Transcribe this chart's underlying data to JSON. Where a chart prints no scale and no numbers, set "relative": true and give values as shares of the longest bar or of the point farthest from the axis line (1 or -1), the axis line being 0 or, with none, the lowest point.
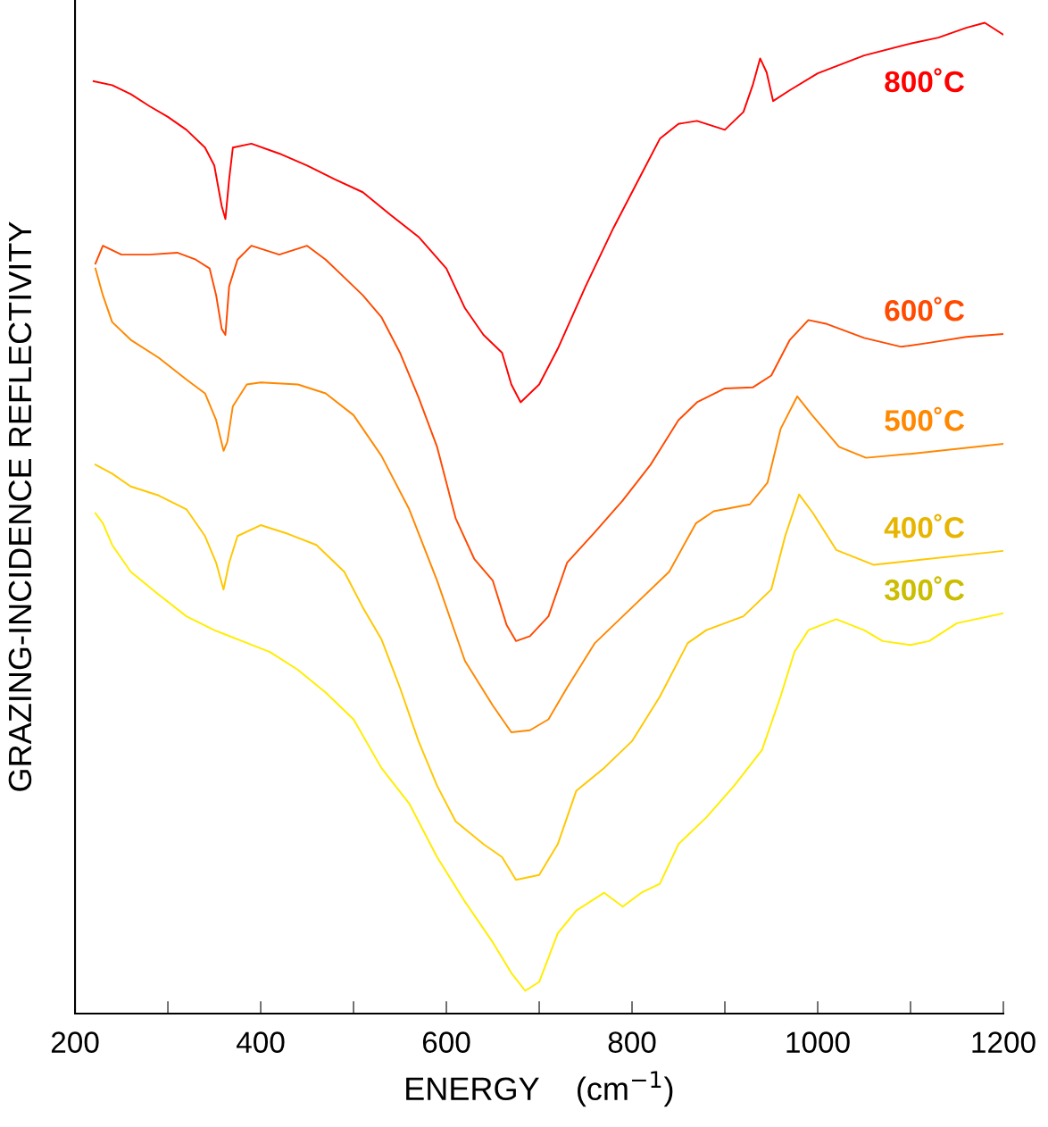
{
  "chart_data": {
    "type": "line",
    "relative": true,
    "xlabel": "ENERGY    (cm$^{−1}$)",
    "ylabel": "GRAZING-INCIDENCE REFLECTIVITY",
    "xlim": [
      200,
      1200
    ],
    "xticks": [
      200,
      {
        "value": 300,
        "label": null
      },
      400,
      {
        "value": 500,
        "label": null
      },
      600,
      {
        "value": 700,
        "label": null
      },
      800,
      {
        "value": 900,
        "label": null
      },
      1000,
      {
        "value": 1100,
        "label": null
      },
      1200
    ],
    "tick_labels": "x",
    "grid": false,
    "legend": false,
    "marker": "none",
    "line_style": "solid",
    "series": [
      {
        "name": "800˚C",
        "color": "#ff0000",
        "x": [
          220,
          240,
          260,
          280,
          300,
          320,
          340,
          350,
          358,
          362,
          366,
          370,
          390,
          420,
          450,
          480,
          510,
          540,
          570,
          600,
          620,
          640,
          660,
          670,
          680,
          700,
          720,
          750,
          780,
          810,
          830,
          850,
          870,
          900,
          920,
          930,
          938,
          945,
          952,
          970,
          1000,
          1050,
          1100,
          1130,
          1160,
          1180,
          1200
        ],
        "values": [
          0.941,
          0.937,
          0.928,
          0.916,
          0.905,
          0.892,
          0.874,
          0.856,
          0.815,
          0.802,
          0.842,
          0.874,
          0.878,
          0.868,
          0.856,
          0.842,
          0.829,
          0.806,
          0.784,
          0.752,
          0.712,
          0.685,
          0.667,
          0.635,
          0.617,
          0.635,
          0.671,
          0.734,
          0.793,
          0.847,
          0.883,
          0.898,
          0.901,
          0.892,
          0.91,
          0.937,
          0.964,
          0.95,
          0.921,
          0.932,
          0.949,
          0.967,
          0.979,
          0.985,
          0.995,
          1.0,
          0.988
        ]
      },
      {
        "name": "600˚C",
        "color": "#ff4a00",
        "x": [
          222,
          230,
          250,
          280,
          310,
          330,
          345,
          352,
          358,
          362,
          366,
          375,
          390,
          420,
          450,
          470,
          490,
          510,
          530,
          550,
          570,
          590,
          610,
          630,
          650,
          665,
          675,
          690,
          710,
          730,
          760,
          790,
          820,
          850,
          870,
          900,
          930,
          950,
          970,
          990,
          1010,
          1050,
          1090,
          1120,
          1160,
          1200
        ],
        "values": [
          0.757,
          0.775,
          0.766,
          0.766,
          0.768,
          0.761,
          0.752,
          0.725,
          0.691,
          0.685,
          0.734,
          0.761,
          0.775,
          0.766,
          0.775,
          0.761,
          0.743,
          0.725,
          0.703,
          0.667,
          0.622,
          0.572,
          0.5,
          0.459,
          0.437,
          0.392,
          0.376,
          0.381,
          0.401,
          0.455,
          0.486,
          0.518,
          0.554,
          0.599,
          0.617,
          0.631,
          0.632,
          0.644,
          0.68,
          0.7,
          0.696,
          0.682,
          0.673,
          0.677,
          0.683,
          0.686
        ]
      },
      {
        "name": "500˚C",
        "color": "#ff8800",
        "x": [
          222,
          230,
          240,
          260,
          290,
          320,
          340,
          352,
          360,
          364,
          370,
          385,
          400,
          440,
          470,
          500,
          530,
          560,
          590,
          620,
          650,
          670,
          690,
          710,
          730,
          760,
          790,
          840,
          869,
          888,
          927,
          946,
          960,
          978,
          994,
          1023,
          1052,
          1100,
          1200
        ],
        "values": [
          0.752,
          0.725,
          0.698,
          0.68,
          0.662,
          0.64,
          0.626,
          0.599,
          0.568,
          0.577,
          0.613,
          0.635,
          0.637,
          0.635,
          0.626,
          0.604,
          0.563,
          0.509,
          0.437,
          0.356,
          0.311,
          0.284,
          0.286,
          0.297,
          0.329,
          0.374,
          0.401,
          0.446,
          0.495,
          0.507,
          0.514,
          0.536,
          0.59,
          0.623,
          0.604,
          0.572,
          0.561,
          0.565,
          0.575
        ]
      },
      {
        "name": "400˚C",
        "color": "#ffc800",
        "x": [
          222,
          240,
          260,
          290,
          320,
          340,
          352,
          360,
          366,
          375,
          400,
          430,
          460,
          490,
          510,
          530,
          550,
          570,
          590,
          610,
          640,
          660,
          675,
          700,
          720,
          740,
          770,
          800,
          830,
          860,
          880,
          920,
          950,
          965,
          980,
          995,
          1020,
          1060,
          1100,
          1200
        ],
        "values": [
          0.554,
          0.545,
          0.532,
          0.523,
          0.509,
          0.482,
          0.455,
          0.428,
          0.455,
          0.482,
          0.493,
          0.484,
          0.473,
          0.446,
          0.41,
          0.378,
          0.329,
          0.275,
          0.23,
          0.194,
          0.171,
          0.158,
          0.135,
          0.14,
          0.171,
          0.225,
          0.248,
          0.275,
          0.32,
          0.374,
          0.387,
          0.401,
          0.428,
          0.482,
          0.524,
          0.505,
          0.468,
          0.453,
          0.457,
          0.467
        ]
      },
      {
        "name": "300˚C",
        "color": "#ffee00",
        "x": [
          222,
          230,
          240,
          260,
          290,
          320,
          350,
          380,
          410,
          440,
          470,
          500,
          530,
          560,
          590,
          620,
          650,
          670,
          685,
          700,
          720,
          740,
          770,
          790,
          810,
          830,
          850,
          880,
          910,
          940,
          960,
          975,
          990,
          1020,
          1050,
          1070,
          1100,
          1120,
          1150,
          1200
        ],
        "values": [
          0.505,
          0.495,
          0.473,
          0.446,
          0.423,
          0.401,
          0.387,
          0.376,
          0.365,
          0.347,
          0.324,
          0.297,
          0.248,
          0.212,
          0.158,
          0.113,
          0.072,
          0.041,
          0.023,
          0.032,
          0.081,
          0.104,
          0.122,
          0.108,
          0.122,
          0.131,
          0.171,
          0.198,
          0.23,
          0.266,
          0.32,
          0.365,
          0.387,
          0.398,
          0.387,
          0.376,
          0.372,
          0.376,
          0.394,
          0.404
        ]
      }
    ]
  }
}
